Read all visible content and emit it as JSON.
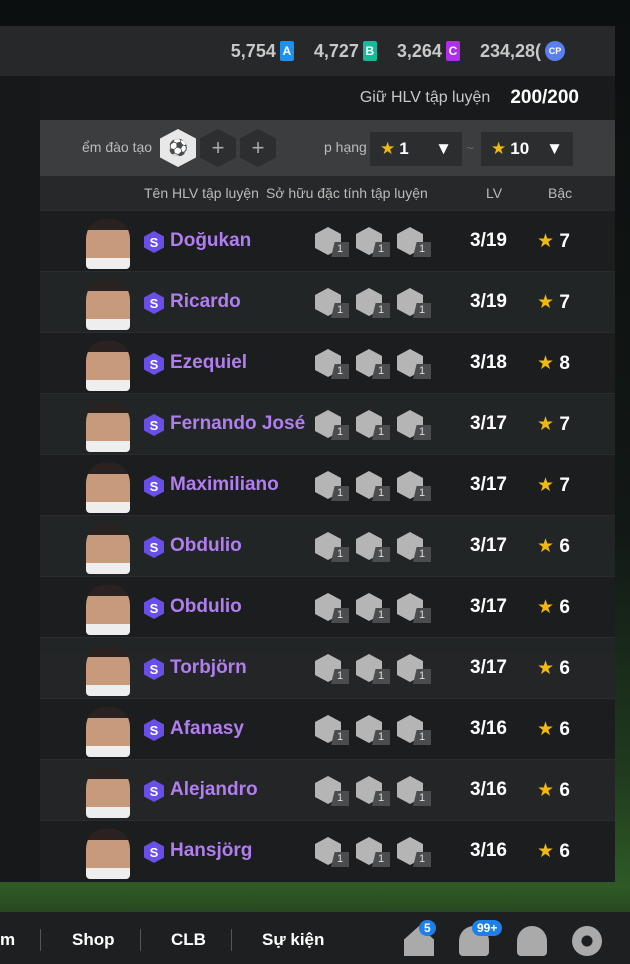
{
  "currencies": [
    {
      "value": "5,754",
      "label": "A",
      "color": "#1e90f0"
    },
    {
      "value": "4,727",
      "label": "B",
      "color": "#18b89a"
    },
    {
      "value": "3,264",
      "label": "C",
      "color": "#b02ee8"
    },
    {
      "value": "234,28(",
      "label": "CP",
      "color": "#5a7ff0"
    }
  ],
  "keep": {
    "label": "Giữ HLV tập luyện",
    "value": "200/200"
  },
  "filter": {
    "training_label": "ểm đào tạo",
    "rank_label": "p hạng",
    "from": "1",
    "tilde": "~",
    "to": "10"
  },
  "headers": {
    "name": "Tên HLV tập luyện",
    "traits": "Sở hữu đặc tính tập luyện",
    "lv": "LV",
    "grade": "Bậc"
  },
  "rows": [
    {
      "name": "Doğukan",
      "lv": "3/19",
      "grade": "7",
      "traits": [
        "vision-icon",
        "goal-frame-icon",
        "ball-kick-icon"
      ]
    },
    {
      "name": "Ricardo",
      "lv": "3/19",
      "grade": "7",
      "traits": [
        "tackle-icon",
        "shield-ball-icon",
        "ball-kick-icon"
      ]
    },
    {
      "name": "Ezequiel",
      "lv": "3/18",
      "grade": "8",
      "traits": [
        "vision-icon",
        "ball-kick-icon",
        "runner-icon"
      ]
    },
    {
      "name": "Fernando José",
      "lv": "3/17",
      "grade": "7",
      "traits": [
        "tackle-icon",
        "ball-kick-icon",
        "runner-icon"
      ]
    },
    {
      "name": "Maximiliano",
      "lv": "3/17",
      "grade": "7",
      "traits": [
        "vision-icon",
        "ball-kick-icon",
        "runner-icon"
      ]
    },
    {
      "name": "Obdulio",
      "lv": "3/17",
      "grade": "6",
      "traits": [
        "vision-icon",
        "tackle-icon",
        "ball-kick-icon"
      ]
    },
    {
      "name": "Obdulio",
      "lv": "3/17",
      "grade": "6",
      "traits": [
        "vision-icon",
        "shield-ball-icon",
        "ball-kick-icon"
      ]
    },
    {
      "name": "Torbjörn",
      "lv": "3/17",
      "grade": "6",
      "traits": [
        "vision-icon",
        "shield-ball-icon",
        "ball-kick-icon"
      ]
    },
    {
      "name": "Afanasy",
      "lv": "3/16",
      "grade": "6",
      "traits": [
        "vision-icon",
        "ball-kick-icon",
        "header-icon"
      ]
    },
    {
      "name": "Alejandro",
      "lv": "3/16",
      "grade": "6",
      "traits": [
        "tackle-icon",
        "lock-icon",
        "ball-kick-icon"
      ]
    },
    {
      "name": "Hansjörg",
      "lv": "3/16",
      "grade": "6",
      "traits": [
        "vision-icon",
        "ball-kick-icon",
        "boot-icon"
      ]
    }
  ],
  "trait_level": "1",
  "grade_badge": "S",
  "nav": {
    "items": [
      "m",
      "Shop",
      "CLB",
      "Sự kiện"
    ],
    "home_badge": "5",
    "bell_badge": "99+"
  }
}
